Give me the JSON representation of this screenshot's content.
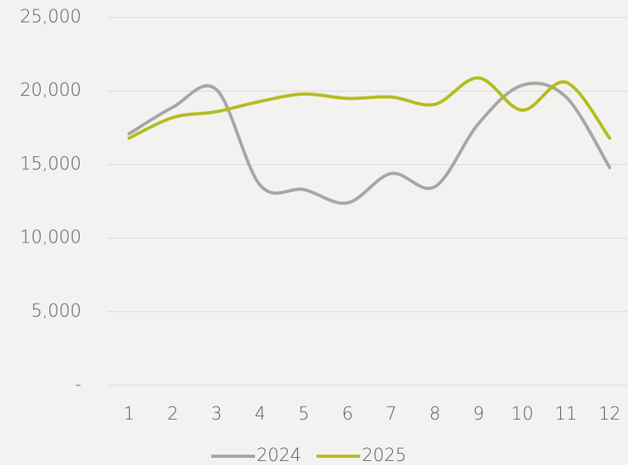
{
  "chart_data": {
    "type": "line",
    "categories": [
      "1",
      "2",
      "3",
      "4",
      "5",
      "6",
      "7",
      "8",
      "9",
      "10",
      "11",
      "12"
    ],
    "series": [
      {
        "name": "2024",
        "color": "#a6a6a6",
        "values": [
          17100,
          18900,
          20100,
          13600,
          13300,
          12400,
          14400,
          13500,
          17800,
          20400,
          19600,
          14800
        ]
      },
      {
        "name": "2025",
        "color": "#b4bc1c",
        "values": [
          16800,
          18200,
          18600,
          19300,
          19800,
          19500,
          19600,
          19100,
          20900,
          18700,
          20600,
          16800
        ]
      }
    ],
    "ylim": [
      0,
      25000
    ],
    "yticks": [
      {
        "value": 0,
        "label": "-"
      },
      {
        "value": 5000,
        "label": "5,000"
      },
      {
        "value": 10000,
        "label": "10,000"
      },
      {
        "value": 15000,
        "label": "15,000"
      },
      {
        "value": 20000,
        "label": "20,000"
      },
      {
        "value": 25000,
        "label": "25,000"
      }
    ],
    "grid": true,
    "smooth": true,
    "legend": "bottom"
  }
}
